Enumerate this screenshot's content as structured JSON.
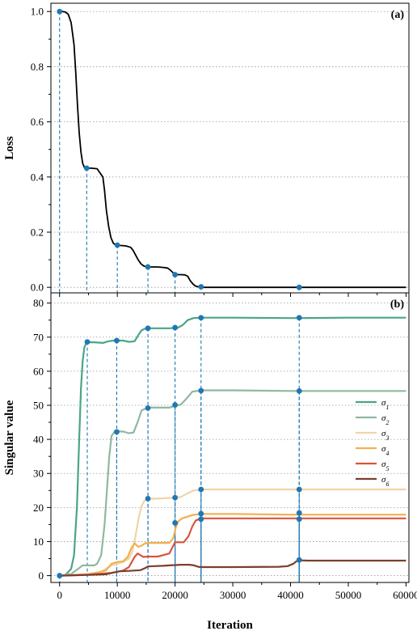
{
  "chart_data": [
    {
      "type": "line",
      "panel_label": "(a)",
      "xlabel": "",
      "ylabel": "Loss",
      "xlim": [
        -1500,
        60500
      ],
      "ylim": [
        -0.02,
        1.03
      ],
      "xticks": [
        0,
        10000,
        20000,
        30000,
        40000,
        50000,
        60000
      ],
      "xtick_labels": [
        "0",
        "10000",
        "20000",
        "30000",
        "40000",
        "50000",
        "60000"
      ],
      "yticks": [
        0.0,
        0.2,
        0.4,
        0.6,
        0.8,
        1.0
      ],
      "ytick_labels": [
        "0.0",
        "0.2",
        "0.4",
        "0.6",
        "0.8",
        "1.0"
      ],
      "grid": "horizontal-dotted",
      "series": [
        {
          "color": "#000000",
          "x": [
            0,
            500,
            1000,
            1500,
            2000,
            2500,
            2800,
            3100,
            3400,
            3700,
            4000,
            4300,
            4700,
            5500,
            6500,
            7500,
            7800,
            8100,
            8500,
            8900,
            9300,
            9700,
            10500,
            11500,
            12300,
            12700,
            13100,
            13600,
            14100,
            14600,
            15200,
            16000,
            17000,
            18000,
            18700,
            19200,
            19700,
            20200,
            21000,
            21700,
            22200,
            22600,
            23100,
            23600,
            24200,
            25000,
            30000,
            40000,
            50000,
            60000
          ],
          "y": [
            1.0,
            1.0,
            0.998,
            0.99,
            0.96,
            0.88,
            0.78,
            0.66,
            0.56,
            0.49,
            0.45,
            0.435,
            0.432,
            0.432,
            0.43,
            0.4,
            0.35,
            0.28,
            0.22,
            0.18,
            0.16,
            0.154,
            0.152,
            0.15,
            0.145,
            0.135,
            0.12,
            0.1,
            0.085,
            0.077,
            0.074,
            0.074,
            0.074,
            0.072,
            0.07,
            0.062,
            0.052,
            0.046,
            0.046,
            0.045,
            0.04,
            0.025,
            0.012,
            0.004,
            0.001,
            0.0,
            0.0,
            0.0,
            0.0,
            0.0
          ]
        }
      ],
      "markers": [
        {
          "x": 0,
          "y": 1.0
        },
        {
          "x": 4700,
          "y": 0.432
        },
        {
          "x": 10000,
          "y": 0.153
        },
        {
          "x": 15300,
          "y": 0.074
        },
        {
          "x": 20000,
          "y": 0.046
        },
        {
          "x": 24500,
          "y": 0.002
        },
        {
          "x": 41500,
          "y": 0.0
        }
      ],
      "marker_color": "#1f77b4"
    },
    {
      "type": "line",
      "panel_label": "(b)",
      "xlabel": "Iteration",
      "ylabel": "Singular value",
      "xlim": [
        -1500,
        60500
      ],
      "ylim": [
        -2,
        83
      ],
      "xticks": [
        0,
        10000,
        20000,
        30000,
        40000,
        50000,
        60000
      ],
      "xtick_labels": [
        "0",
        "10000",
        "20000",
        "30000",
        "40000",
        "50000",
        "60000"
      ],
      "yticks": [
        0,
        10,
        20,
        30,
        40,
        50,
        60,
        70,
        80
      ],
      "ytick_labels": [
        "0",
        "10",
        "20",
        "30",
        "40",
        "50",
        "60",
        "70",
        "80"
      ],
      "grid": "horizontal-dotted",
      "legend_position": "right",
      "series": [
        {
          "name": "σ1",
          "color": "#4aa587",
          "x": [
            0,
            1000,
            2000,
            2500,
            3000,
            3400,
            3700,
            4000,
            4300,
            4700,
            6000,
            7500,
            8500,
            9300,
            10000,
            11000,
            12000,
            13000,
            13600,
            14200,
            14800,
            15300,
            17000,
            19000,
            20500,
            21300,
            22200,
            23200,
            24500,
            30000,
            40000,
            41500,
            50000,
            60000
          ],
          "y": [
            0,
            0.2,
            2,
            6,
            20,
            40,
            55,
            63,
            67,
            68.5,
            68.5,
            68.3,
            68.8,
            69,
            69,
            69,
            68.6,
            68.8,
            70.5,
            72,
            72.5,
            72.6,
            72.6,
            72.6,
            72.8,
            73.5,
            75,
            75.6,
            75.7,
            75.7,
            75.6,
            75.6,
            75.7,
            75.7
          ]
        },
        {
          "name": "σ2",
          "color": "#8fb89f",
          "x": [
            0,
            2000,
            3200,
            4000,
            5000,
            6000,
            6500,
            7200,
            7800,
            8200,
            8600,
            9000,
            9500,
            10000,
            11000,
            12000,
            12800,
            13500,
            14200,
            15300,
            17000,
            19000,
            20000,
            21000,
            22000,
            23000,
            24500,
            30000,
            40000,
            41500,
            50000,
            60000
          ],
          "y": [
            0,
            0.5,
            2,
            3,
            3,
            3,
            3.5,
            6,
            15,
            25,
            35,
            41,
            42.2,
            42.3,
            42.3,
            41.8,
            42,
            45,
            48.5,
            49.3,
            49.3,
            49.3,
            49.8,
            50.2,
            52,
            54,
            54.4,
            54.4,
            54.2,
            54.2,
            54.2,
            54.2
          ]
        },
        {
          "name": "σ3",
          "color": "#eed5a8",
          "x": [
            0,
            4000,
            7000,
            8000,
            9000,
            10000,
            11000,
            12000,
            12600,
            13200,
            13700,
            14200,
            14700,
            15300,
            16500,
            18000,
            19000,
            20000,
            21000,
            22200,
            23200,
            24500,
            30000,
            40000,
            41500,
            50000,
            60000
          ],
          "y": [
            0,
            0.4,
            1,
            2,
            3,
            3.5,
            4,
            5,
            7,
            12,
            17,
            20.5,
            22,
            22.6,
            22.6,
            22.7,
            22.8,
            22.9,
            23.1,
            24.2,
            25,
            25.3,
            25.3,
            25.3,
            25.3,
            25.3,
            25.3
          ]
        },
        {
          "name": "σ4",
          "color": "#f0b050",
          "x": [
            0,
            5000,
            8000,
            9000,
            10000,
            11000,
            11800,
            12400,
            13000,
            13600,
            14200,
            14800,
            15300,
            17000,
            19000,
            19700,
            20100,
            20600,
            21200,
            22000,
            23000,
            24500,
            30000,
            40000,
            41500,
            50000,
            60000
          ],
          "y": [
            0,
            0.3,
            1.5,
            3.5,
            4,
            4.2,
            5.5,
            8,
            9.5,
            8.5,
            8.8,
            9.5,
            9.6,
            9.6,
            9.6,
            11,
            14,
            16,
            16.8,
            17.2,
            17.8,
            18.1,
            18.1,
            17.9,
            17.9,
            17.9,
            17.9
          ]
        },
        {
          "name": "σ5",
          "color": "#d9543c",
          "x": [
            0,
            5000,
            9000,
            11000,
            12000,
            13000,
            13500,
            14000,
            14500,
            15300,
            17000,
            19000,
            20000,
            21500,
            22300,
            23000,
            23600,
            24500,
            30000,
            40000,
            41500,
            50000,
            60000
          ],
          "y": [
            0,
            0.3,
            0.8,
            1.5,
            2.5,
            5.5,
            6.5,
            6,
            5.5,
            5.6,
            5.6,
            6.5,
            9.8,
            9.8,
            11.5,
            14.5,
            16.2,
            16.8,
            16.8,
            16.8,
            16.8,
            16.8,
            16.8
          ]
        },
        {
          "name": "σ6",
          "color": "#7b3f2c",
          "x": [
            0,
            5000,
            8000,
            9500,
            10500,
            12000,
            14000,
            14800,
            15300,
            16500,
            18000,
            19000,
            20000,
            21000,
            22500,
            23300,
            24000,
            24500,
            30000,
            38000,
            39500,
            40500,
            41000,
            41500,
            43000,
            50000,
            60000
          ],
          "y": [
            0,
            0.2,
            0.4,
            1,
            1.3,
            1.4,
            1.6,
            2.2,
            2.7,
            2.8,
            2.9,
            3,
            3.1,
            3.2,
            3.2,
            3,
            2.6,
            2.5,
            2.5,
            2.6,
            2.8,
            3.5,
            4.2,
            4.5,
            4.4,
            4.4,
            4.4
          ]
        }
      ],
      "markers": [
        {
          "x": 0,
          "y": 0
        },
        {
          "x": 4800,
          "y": 68.6
        },
        {
          "x": 9900,
          "y": 69
        },
        {
          "x": 15300,
          "y": 72.6
        },
        {
          "x": 20000,
          "y": 72.8
        },
        {
          "x": 24500,
          "y": 75.7
        },
        {
          "x": 41500,
          "y": 75.7
        },
        {
          "x": 9900,
          "y": 42.2
        },
        {
          "x": 15300,
          "y": 49.2
        },
        {
          "x": 20000,
          "y": 50.1
        },
        {
          "x": 24500,
          "y": 54.3
        },
        {
          "x": 41500,
          "y": 54.2
        },
        {
          "x": 15300,
          "y": 22.6
        },
        {
          "x": 20000,
          "y": 22.9
        },
        {
          "x": 24500,
          "y": 25.3
        },
        {
          "x": 41500,
          "y": 25.3
        },
        {
          "x": 20000,
          "y": 15.5
        },
        {
          "x": 24500,
          "y": 18.2
        },
        {
          "x": 41500,
          "y": 18.4
        },
        {
          "x": 24500,
          "y": 16.6
        },
        {
          "x": 41500,
          "y": 16.6
        },
        {
          "x": 41500,
          "y": 4.6
        }
      ],
      "marker_color": "#1f77b4",
      "dashed_guides_x": [
        0,
        4800,
        9900,
        15300,
        20000,
        24500,
        41500
      ]
    }
  ]
}
